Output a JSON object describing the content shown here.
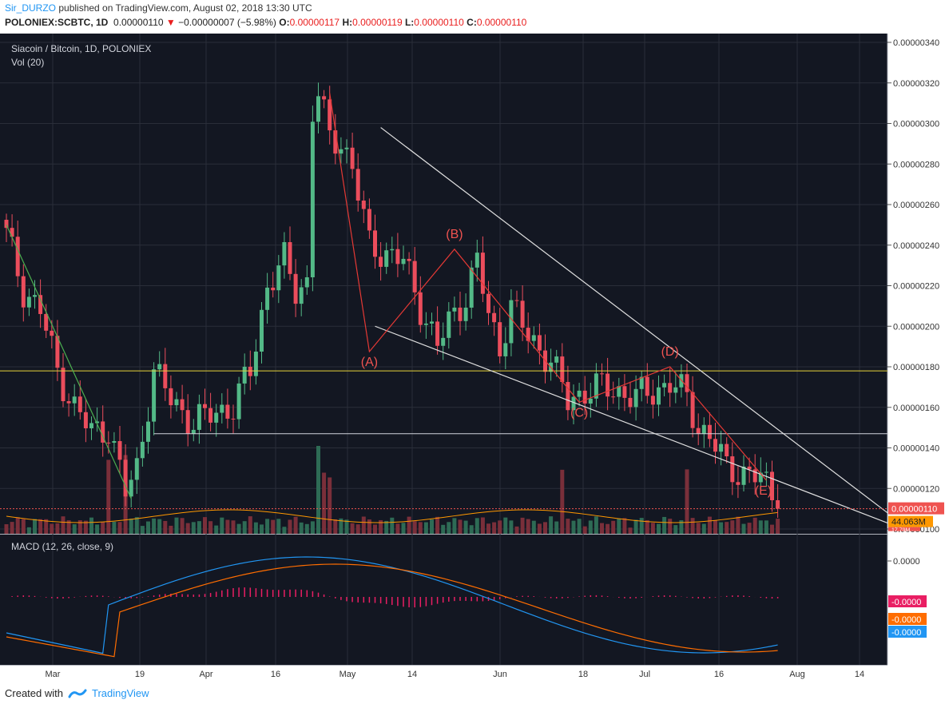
{
  "header": {
    "author": "Sir_DURZO",
    "published": " published on TradingView.com, August 02, 2018 13:30 UTC",
    "symbol": "POLONIEX:SCBTC, 1D",
    "last": "0.00000110",
    "arrow": "▼",
    "change": "−0.00000007 (−5.98%)",
    "o_label": "O:",
    "o": "0.00000117",
    "h_label": "H:",
    "h": "0.00000119",
    "l_label": "L:",
    "l": "0.00000110",
    "c_label": "C:",
    "c": "0.00000110"
  },
  "footer": {
    "created_with": "Created with",
    "brand": "TradingView"
  },
  "colors": {
    "bg": "#131722",
    "grid": "#2a2e39",
    "up": "#53b987",
    "down": "#eb4d5c",
    "accent": "#2196f3",
    "macd": "#2196f3",
    "signal": "#ff6d00",
    "hist": "#e91e63"
  },
  "chart_data": {
    "type": "candlestick",
    "title": "Siacoin / Bitcoin, 1D, POLONIEX",
    "volume_label": "Vol (20)",
    "macd_label": "MACD (12, 26, close, 9)",
    "price_axis": [
      "0.00000340",
      "0.00000320",
      "0.00000300",
      "0.00000280",
      "0.00000260",
      "0.00000240",
      "0.00000220",
      "0.00000200",
      "0.00000180",
      "0.00000160",
      "0.00000140",
      "0.00000120",
      "0.00000100"
    ],
    "price_range": [
      1e-06,
      3.41e-06
    ],
    "x_labels": [
      "Mar",
      "19",
      "Apr",
      "16",
      "May",
      "14",
      "Jun",
      "18",
      "Jul",
      "16",
      "Aug",
      "14"
    ],
    "current_price_badge": "0.00000110",
    "volume_ma_badge": "44.063M",
    "volume_badge": "17.79M",
    "macd_axis": "0.0000",
    "macd_badges": [
      "-0.0000",
      "-0.0000",
      "-0.0000"
    ],
    "wave_labels": [
      "(A)",
      "(B)",
      "(C)",
      "(D)",
      "(E)"
    ],
    "horizontal_level": 1.78e-06,
    "wave_points": [
      {
        "label": "(A)",
        "day": 64,
        "price": 1.875e-06
      },
      {
        "label": "(B)",
        "day": 79,
        "price": 2.38e-06
      },
      {
        "label": "(C)",
        "day": 101,
        "price": 1.625e-06
      },
      {
        "label": "(D)",
        "day": 117,
        "price": 1.8e-06
      },
      {
        "label": "(E)",
        "day": 134,
        "price": 1.24e-06
      }
    ],
    "close_series": [
      {
        "day": 0,
        "price": 2.45e-06
      },
      {
        "day": 3,
        "price": 2.18e-06
      },
      {
        "day": 6,
        "price": 2.08e-06
      },
      {
        "day": 9,
        "price": 1.78e-06
      },
      {
        "day": 12,
        "price": 1.6e-06
      },
      {
        "day": 15,
        "price": 1.48e-06
      },
      {
        "day": 18,
        "price": 1.5e-06
      },
      {
        "day": 21,
        "price": 1.18e-06
      },
      {
        "day": 23,
        "price": 1.3e-06
      },
      {
        "day": 26,
        "price": 1.78e-06
      },
      {
        "day": 29,
        "price": 1.64e-06
      },
      {
        "day": 33,
        "price": 1.52e-06
      },
      {
        "day": 37,
        "price": 1.58e-06
      },
      {
        "day": 40,
        "price": 1.6e-06
      },
      {
        "day": 43,
        "price": 1.78e-06
      },
      {
        "day": 46,
        "price": 2.2e-06
      },
      {
        "day": 49,
        "price": 2.32e-06
      },
      {
        "day": 51,
        "price": 2.18e-06
      },
      {
        "day": 53,
        "price": 2.22e-06
      },
      {
        "day": 54,
        "price": 3.05e-06
      },
      {
        "day": 55,
        "price": 3.15e-06
      },
      {
        "day": 57,
        "price": 2.92e-06
      },
      {
        "day": 59,
        "price": 2.92e-06
      },
      {
        "day": 61,
        "price": 2.78e-06
      },
      {
        "day": 64,
        "price": 2.4e-06
      },
      {
        "day": 67,
        "price": 2.36e-06
      },
      {
        "day": 70,
        "price": 2.32e-06
      },
      {
        "day": 73,
        "price": 2.1e-06
      },
      {
        "day": 76,
        "price": 1.9e-06
      },
      {
        "day": 78,
        "price": 2.02e-06
      },
      {
        "day": 81,
        "price": 2.15e-06
      },
      {
        "day": 83,
        "price": 2.32e-06
      },
      {
        "day": 85,
        "price": 2.05e-06
      },
      {
        "day": 87,
        "price": 1.9e-06
      },
      {
        "day": 89,
        "price": 2.1e-06
      },
      {
        "day": 92,
        "price": 1.95e-06
      },
      {
        "day": 96,
        "price": 1.83e-06
      },
      {
        "day": 99,
        "price": 1.63e-06
      },
      {
        "day": 102,
        "price": 1.68e-06
      },
      {
        "day": 105,
        "price": 1.7e-06
      },
      {
        "day": 108,
        "price": 1.68e-06
      },
      {
        "day": 111,
        "price": 1.65e-06
      },
      {
        "day": 114,
        "price": 1.68e-06
      },
      {
        "day": 117,
        "price": 1.72e-06
      },
      {
        "day": 120,
        "price": 1.65e-06
      },
      {
        "day": 122,
        "price": 1.5e-06
      },
      {
        "day": 124,
        "price": 1.46e-06
      },
      {
        "day": 127,
        "price": 1.3e-06
      },
      {
        "day": 130,
        "price": 1.28e-06
      },
      {
        "day": 133,
        "price": 1.25e-06
      },
      {
        "day": 135,
        "price": 1.17e-06
      },
      {
        "day": 136,
        "price": 1.1e-06
      }
    ]
  }
}
